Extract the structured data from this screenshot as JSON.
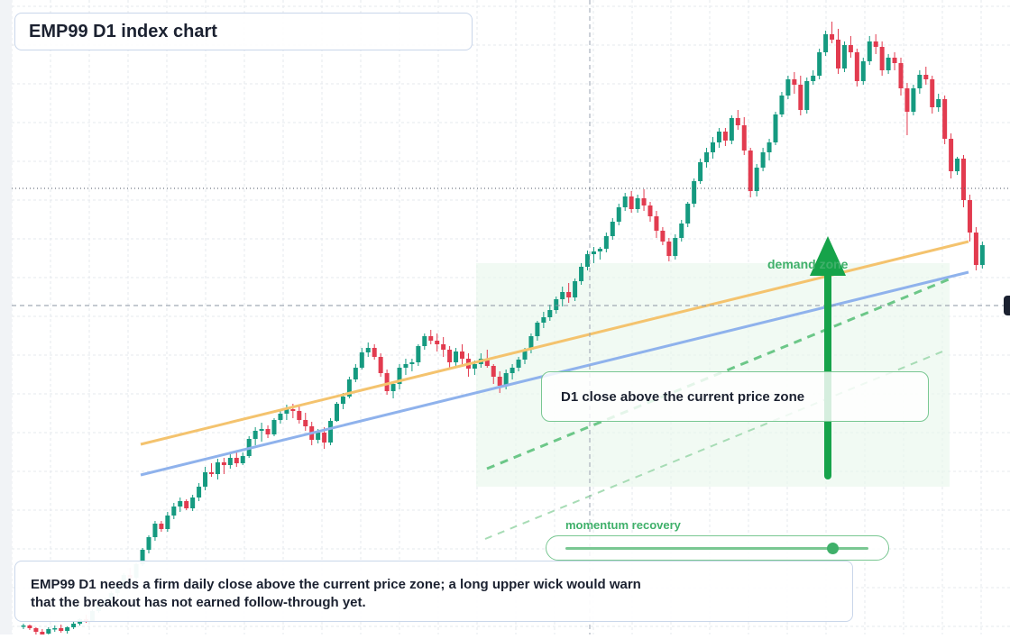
{
  "title": "EMP99 D1 index chart",
  "callout": "D1 close above the current price zone",
  "zone_label": "demand zone",
  "momentum": {
    "label": "momentum recovery",
    "level": 0.88
  },
  "note": {
    "line1": "EMP99 D1 needs a firm daily close above the current price zone; a long upper wick would warn",
    "line2": "that the breakout has not earned follow-through yet."
  },
  "colors": {
    "bull": "#159a80",
    "bear": "#e23b4f",
    "ma_fast": "#f4c36e",
    "ma_slow": "#8fb2ec",
    "accent_green": "#16a34a",
    "zone_fill": "#e9f7ec",
    "grid": "#e5e8ee"
  },
  "chart_data": {
    "type": "candlestick",
    "title": "EMP99 D1 index chart",
    "ylim": [
      0,
      700
    ],
    "candles": [
      [
        0,
        9,
        12,
        6,
        10
      ],
      [
        1,
        10,
        11,
        5,
        7
      ],
      [
        2,
        7,
        8,
        0,
        3
      ],
      [
        3,
        3,
        6,
        -2,
        0
      ],
      [
        4,
        1,
        8,
        0,
        6
      ],
      [
        5,
        6,
        10,
        3,
        7
      ],
      [
        6,
        7,
        11,
        2,
        4
      ],
      [
        7,
        4,
        9,
        1,
        8
      ],
      [
        8,
        8,
        14,
        6,
        12
      ],
      [
        9,
        12,
        18,
        10,
        17
      ],
      [
        10,
        17,
        22,
        13,
        15
      ],
      [
        11,
        15,
        28,
        14,
        26
      ],
      [
        12,
        26,
        35,
        24,
        33
      ],
      [
        13,
        33,
        41,
        30,
        38
      ],
      [
        14,
        38,
        48,
        34,
        46
      ],
      [
        15,
        46,
        56,
        42,
        54
      ],
      [
        16,
        54,
        68,
        52,
        66
      ],
      [
        17,
        66,
        74,
        60,
        63
      ],
      [
        18,
        63,
        80,
        61,
        78
      ],
      [
        19,
        78,
        96,
        76,
        94
      ],
      [
        20,
        94,
        110,
        90,
        108
      ],
      [
        21,
        108,
        126,
        104,
        123
      ],
      [
        22,
        123,
        126,
        114,
        117
      ],
      [
        23,
        117,
        136,
        114,
        132
      ],
      [
        24,
        132,
        146,
        128,
        142
      ],
      [
        25,
        142,
        152,
        136,
        148
      ],
      [
        26,
        148,
        150,
        138,
        140
      ],
      [
        27,
        140,
        155,
        137,
        152
      ],
      [
        28,
        152,
        168,
        148,
        164
      ],
      [
        29,
        164,
        186,
        160,
        180
      ],
      [
        30,
        180,
        190,
        175,
        178
      ],
      [
        31,
        178,
        195,
        172,
        191
      ],
      [
        32,
        191,
        196,
        178,
        188
      ],
      [
        33,
        188,
        200,
        184,
        196
      ],
      [
        34,
        196,
        202,
        186,
        190
      ],
      [
        35,
        190,
        202,
        188,
        198
      ],
      [
        36,
        198,
        220,
        196,
        217
      ],
      [
        37,
        217,
        230,
        210,
        226
      ],
      [
        38,
        226,
        235,
        214,
        228
      ],
      [
        39,
        228,
        232,
        218,
        222
      ],
      [
        40,
        222,
        240,
        220,
        238
      ],
      [
        41,
        238,
        250,
        234,
        245
      ],
      [
        42,
        245,
        255,
        238,
        250
      ],
      [
        43,
        250,
        256,
        240,
        248
      ],
      [
        44,
        248,
        254,
        234,
        238
      ],
      [
        45,
        238,
        246,
        226,
        231
      ],
      [
        46,
        231,
        236,
        210,
        216
      ],
      [
        47,
        216,
        228,
        212,
        224
      ],
      [
        48,
        224,
        230,
        206,
        213
      ],
      [
        49,
        213,
        240,
        210,
        237
      ],
      [
        50,
        237,
        258,
        236,
        256
      ],
      [
        51,
        256,
        268,
        250,
        264
      ],
      [
        52,
        264,
        286,
        262,
        283
      ],
      [
        53,
        283,
        300,
        280,
        296
      ],
      [
        54,
        296,
        318,
        294,
        313
      ],
      [
        55,
        313,
        324,
        308,
        318
      ],
      [
        56,
        318,
        322,
        305,
        308
      ],
      [
        57,
        308,
        312,
        286,
        290
      ],
      [
        58,
        290,
        294,
        266,
        270
      ],
      [
        59,
        270,
        280,
        262,
        278
      ],
      [
        60,
        278,
        300,
        272,
        296
      ],
      [
        61,
        296,
        306,
        288,
        300
      ],
      [
        62,
        300,
        306,
        292,
        302
      ],
      [
        63,
        302,
        322,
        298,
        320
      ],
      [
        64,
        320,
        334,
        316,
        331
      ],
      [
        65,
        331,
        338,
        322,
        326
      ],
      [
        66,
        326,
        334,
        314,
        322
      ],
      [
        67,
        322,
        330,
        308,
        316
      ],
      [
        68,
        316,
        320,
        296,
        302
      ],
      [
        69,
        302,
        318,
        298,
        314
      ],
      [
        70,
        314,
        322,
        300,
        306
      ],
      [
        71,
        306,
        312,
        286,
        295
      ],
      [
        72,
        295,
        304,
        288,
        300
      ],
      [
        73,
        300,
        312,
        296,
        306
      ],
      [
        74,
        306,
        316,
        296,
        298
      ],
      [
        75,
        298,
        300,
        278,
        286
      ],
      [
        76,
        286,
        292,
        268,
        276
      ],
      [
        77,
        276,
        294,
        272,
        290
      ],
      [
        78,
        290,
        300,
        283,
        296
      ],
      [
        79,
        296,
        308,
        292,
        305
      ],
      [
        80,
        305,
        318,
        300,
        316
      ],
      [
        81,
        316,
        334,
        312,
        331
      ],
      [
        82,
        331,
        348,
        326,
        346
      ],
      [
        83,
        346,
        358,
        340,
        352
      ],
      [
        84,
        352,
        366,
        348,
        360
      ],
      [
        85,
        360,
        375,
        356,
        372
      ],
      [
        86,
        372,
        386,
        364,
        380
      ],
      [
        87,
        380,
        390,
        368,
        374
      ],
      [
        88,
        374,
        395,
        370,
        392
      ],
      [
        89,
        392,
        412,
        388,
        408
      ],
      [
        90,
        408,
        426,
        404,
        422
      ],
      [
        91,
        422,
        430,
        412,
        425
      ],
      [
        92,
        425,
        430,
        416,
        428
      ],
      [
        93,
        428,
        446,
        424,
        442
      ],
      [
        94,
        442,
        462,
        438,
        458
      ],
      [
        95,
        458,
        478,
        454,
        474
      ],
      [
        96,
        474,
        490,
        470,
        486
      ],
      [
        97,
        486,
        492,
        468,
        472
      ],
      [
        98,
        472,
        488,
        468,
        484
      ],
      [
        99,
        484,
        494,
        470,
        476
      ],
      [
        100,
        476,
        480,
        458,
        464
      ],
      [
        101,
        464,
        470,
        440,
        448
      ],
      [
        102,
        448,
        452,
        432,
        436
      ],
      [
        103,
        436,
        440,
        414,
        420
      ],
      [
        104,
        420,
        444,
        416,
        440
      ],
      [
        105,
        440,
        460,
        436,
        456
      ],
      [
        106,
        456,
        480,
        452,
        478
      ],
      [
        107,
        478,
        506,
        474,
        503
      ],
      [
        108,
        503,
        528,
        500,
        524
      ],
      [
        109,
        524,
        540,
        518,
        535
      ],
      [
        110,
        535,
        552,
        528,
        546
      ],
      [
        111,
        546,
        562,
        540,
        558
      ],
      [
        112,
        558,
        562,
        542,
        548
      ],
      [
        113,
        548,
        576,
        544,
        573
      ],
      [
        114,
        573,
        582,
        560,
        565
      ],
      [
        115,
        565,
        574,
        532,
        537
      ],
      [
        116,
        537,
        540,
        485,
        492
      ],
      [
        117,
        492,
        522,
        486,
        518
      ],
      [
        118,
        518,
        540,
        514,
        535
      ],
      [
        119,
        535,
        550,
        526,
        546
      ],
      [
        120,
        546,
        580,
        543,
        577
      ],
      [
        121,
        577,
        602,
        574,
        598
      ],
      [
        122,
        598,
        620,
        594,
        616
      ],
      [
        123,
        616,
        624,
        600,
        610
      ],
      [
        124,
        610,
        620,
        576,
        582
      ],
      [
        125,
        582,
        618,
        578,
        614
      ],
      [
        126,
        614,
        626,
        610,
        620
      ],
      [
        127,
        620,
        650,
        616,
        646
      ],
      [
        128,
        646,
        670,
        642,
        666
      ],
      [
        129,
        666,
        680,
        656,
        660
      ],
      [
        130,
        660,
        672,
        622,
        628
      ],
      [
        131,
        628,
        658,
        624,
        654
      ],
      [
        132,
        654,
        664,
        640,
        646
      ],
      [
        133,
        646,
        650,
        608,
        614
      ],
      [
        134,
        614,
        640,
        610,
        636
      ],
      [
        135,
        636,
        664,
        632,
        658
      ],
      [
        136,
        658,
        666,
        644,
        652
      ],
      [
        137,
        652,
        658,
        620,
        626
      ],
      [
        138,
        626,
        644,
        622,
        640
      ],
      [
        139,
        640,
        646,
        626,
        634
      ],
      [
        140,
        634,
        640,
        598,
        606
      ],
      [
        141,
        606,
        612,
        554,
        580
      ],
      [
        142,
        580,
        610,
        576,
        606
      ],
      [
        143,
        606,
        626,
        600,
        621
      ],
      [
        144,
        621,
        630,
        610,
        616
      ],
      [
        145,
        616,
        620,
        578,
        585
      ],
      [
        146,
        585,
        600,
        580,
        594
      ],
      [
        147,
        594,
        598,
        544,
        550
      ],
      [
        148,
        550,
        556,
        506,
        514
      ],
      [
        149,
        514,
        530,
        510,
        528
      ],
      [
        150,
        528,
        532,
        474,
        482
      ],
      [
        151,
        482,
        488,
        436,
        446
      ],
      [
        152,
        446,
        452,
        404,
        410
      ],
      [
        153,
        410,
        436,
        406,
        432
      ]
    ]
  }
}
